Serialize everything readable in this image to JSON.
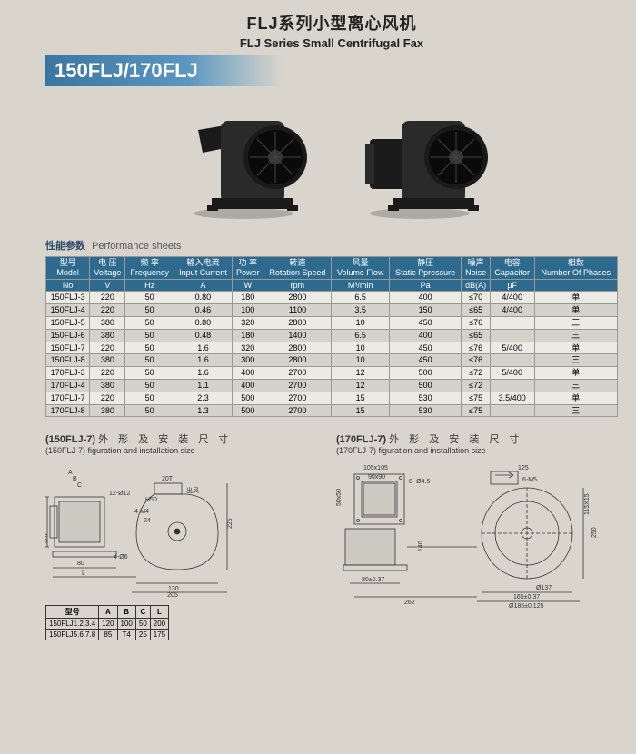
{
  "header": {
    "title_zh": "FLJ系列小型离心风机",
    "title_en": "FLJ Series Small Centrifugal Fax",
    "model_banner": "150FLJ/170FLJ"
  },
  "perf": {
    "label_zh": "性能参数",
    "label_en": "Performance sheets",
    "columns": [
      {
        "zh": "型号",
        "en": "Model",
        "unit": "No"
      },
      {
        "zh": "电 压",
        "en": "Voltage",
        "unit": "V"
      },
      {
        "zh": "频 率",
        "en": "Frequency",
        "unit": "Hz"
      },
      {
        "zh": "输入电流",
        "en": "Input Current",
        "unit": "A"
      },
      {
        "zh": "功 率",
        "en": "Power",
        "unit": "W"
      },
      {
        "zh": "转速",
        "en": "Rotation Speed",
        "unit": "rpm"
      },
      {
        "zh": "风量",
        "en": "Volume Flow",
        "unit": "M³/min"
      },
      {
        "zh": "静压",
        "en": "Static Ppressure",
        "unit": "Pa"
      },
      {
        "zh": "噪声",
        "en": "Noise",
        "unit": "dB(A)"
      },
      {
        "zh": "电容",
        "en": "Capacitor",
        "unit": "μF"
      },
      {
        "zh": "相数",
        "en": "Number Of Phases",
        "unit": ""
      }
    ],
    "rows": [
      [
        "150FLJ-3",
        "220",
        "50",
        "0.80",
        "180",
        "2800",
        "6.5",
        "400",
        "≤70",
        "4/400",
        "单"
      ],
      [
        "150FLJ-4",
        "220",
        "50",
        "0.46",
        "100",
        "1100",
        "3.5",
        "150",
        "≤65",
        "4/400",
        "单"
      ],
      [
        "150FLJ-5",
        "380",
        "50",
        "0.80",
        "320",
        "2800",
        "10",
        "450",
        "≤76",
        "",
        "三"
      ],
      [
        "150FLJ-6",
        "380",
        "50",
        "0.48",
        "180",
        "1400",
        "6.5",
        "400",
        "≤65",
        "",
        "三"
      ],
      [
        "150FLJ-7",
        "220",
        "50",
        "1.6",
        "320",
        "2800",
        "10",
        "450",
        "≤76",
        "5/400",
        "单"
      ],
      [
        "150FLJ-8",
        "380",
        "50",
        "1.6",
        "300",
        "2800",
        "10",
        "450",
        "≤76",
        "",
        "三"
      ],
      [
        "170FLJ-3",
        "220",
        "50",
        "1.6",
        "400",
        "2700",
        "12",
        "500",
        "≤72",
        "5/400",
        "单"
      ],
      [
        "170FLJ-4",
        "380",
        "50",
        "1.1",
        "400",
        "2700",
        "12",
        "500",
        "≤72",
        "",
        "三"
      ],
      [
        "170FLJ-7",
        "220",
        "50",
        "2.3",
        "500",
        "2700",
        "15",
        "530",
        "≤75",
        "3.5/400",
        "单"
      ],
      [
        "170FLJ-8",
        "380",
        "50",
        "1.3",
        "500",
        "2700",
        "15",
        "530",
        "≤75",
        "",
        "三"
      ]
    ]
  },
  "diagrams": {
    "left": {
      "model": "(150FLJ-7)",
      "zh": "外 形 及 安 装 尺 寸",
      "en": "(150FLJ-7) figuration and installation size",
      "dims": {
        "L": "L",
        "80": "80",
        "130": "130",
        "205": "205",
        "225": "225",
        "H50": "H50",
        "20T": "20T",
        "12d12": "12-Ø12",
        "4M4": "4-M4",
        "24": "24",
        "4d6": "4-Ø6",
        "A": "A",
        "B": "B",
        "C": "C",
        "120": "120",
        "88": "88",
        "出风": "出风"
      }
    },
    "right": {
      "model": "(170FLJ-7)",
      "zh": "外 形 及 安 装 尺 寸",
      "en": "(170FLJ-7) figuration and installation size",
      "dims": {
        "105": "105x105",
        "90": "90x90",
        "8d45": "8- Ø4.5",
        "50": "50x50",
        "80": "80±0.37",
        "262": "262",
        "140": "140",
        "6M5": "6-M5",
        "125": "125",
        "115": "115X15",
        "250": "250",
        "d137": "Ø137",
        "165": "165±0.37",
        "d186": "Ø186±0.125"
      }
    },
    "minitable": {
      "head": [
        "型号",
        "A",
        "B",
        "C",
        "L"
      ],
      "rows": [
        [
          "150FLJ1.2.3.4",
          "120",
          "100",
          "50",
          "200"
        ],
        [
          "150FLJ5.6.7.8",
          "85",
          "T4",
          "25",
          "175"
        ]
      ]
    }
  },
  "colors": {
    "bg": "#d9d5cc",
    "header_blue": "#2e6a8e",
    "banner_blue": "#3a76a0",
    "fan_body": "#2a2a2a"
  }
}
